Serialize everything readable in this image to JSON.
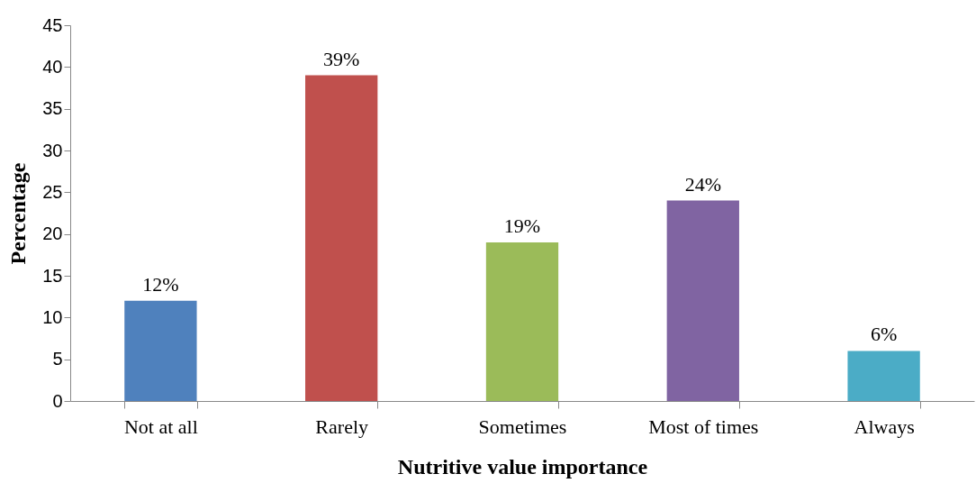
{
  "chart_data": {
    "type": "bar",
    "xlabel": "Nutritive value importance",
    "ylabel": "Percentage",
    "categories": [
      "Not at all",
      "Rarely",
      "Sometimes",
      "Most of times",
      "Always"
    ],
    "values": [
      12,
      39,
      19,
      24,
      6
    ],
    "colors": [
      "#4f81bd",
      "#c0504d",
      "#9bbb59",
      "#8064a2",
      "#4bacc6"
    ],
    "value_labels": [
      "12%",
      "39%",
      "19%",
      "24%",
      "6%"
    ],
    "ylim": [
      0,
      45
    ],
    "yticks": [
      0,
      5,
      10,
      15,
      20,
      25,
      30,
      35,
      40,
      45
    ],
    "grid": false,
    "legend": false
  }
}
